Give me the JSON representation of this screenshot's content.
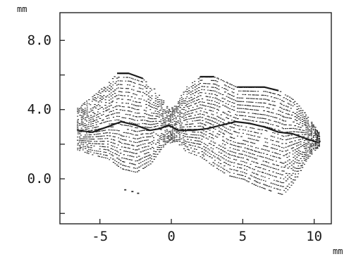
{
  "chart_data": {
    "type": "scatter",
    "title": "",
    "xlabel": "mm",
    "ylabel": "mm",
    "xlim": [
      -7.8,
      11.2
    ],
    "ylim": [
      -2.6,
      9.6
    ],
    "x_ticks": [
      -5,
      0,
      5,
      10
    ],
    "x_tick_labels": [
      "-5",
      "0",
      "5",
      "10"
    ],
    "y_ticks": [
      -2.0,
      0.0,
      2.0,
      4.0,
      6.0,
      8.0
    ],
    "y_tick_labels": [
      "",
      "0.0",
      "",
      "4.0",
      "",
      "8.0"
    ],
    "grid": false,
    "legend": "none",
    "series": [
      {
        "role": "upper-profile",
        "points": [
          [
            -6.6,
            4.1
          ],
          [
            -5.5,
            4.8
          ],
          [
            -4.5,
            5.5
          ],
          [
            -3.8,
            6.1
          ],
          [
            -3.0,
            6.1
          ],
          [
            -2.0,
            5.8
          ],
          [
            -1.0,
            5.0
          ],
          [
            -0.2,
            4.0
          ],
          [
            0.3,
            4.3
          ],
          [
            1.0,
            5.3
          ],
          [
            2.0,
            5.9
          ],
          [
            3.0,
            5.9
          ],
          [
            3.8,
            5.6
          ],
          [
            4.6,
            5.3
          ],
          [
            5.5,
            5.3
          ],
          [
            6.5,
            5.3
          ],
          [
            7.5,
            5.1
          ],
          [
            8.5,
            4.6
          ],
          [
            9.5,
            3.6
          ],
          [
            10.4,
            2.6
          ]
        ]
      },
      {
        "role": "middle-ridge",
        "points": [
          [
            -6.6,
            2.8
          ],
          [
            -5.5,
            2.7
          ],
          [
            -4.5,
            3.0
          ],
          [
            -3.5,
            3.3
          ],
          [
            -2.5,
            3.1
          ],
          [
            -1.5,
            2.8
          ],
          [
            -0.8,
            2.9
          ],
          [
            -0.2,
            3.1
          ],
          [
            0.5,
            2.8
          ],
          [
            1.5,
            2.8
          ],
          [
            2.5,
            2.9
          ],
          [
            3.5,
            3.1
          ],
          [
            4.5,
            3.3
          ],
          [
            5.5,
            3.2
          ],
          [
            6.5,
            3.0
          ],
          [
            7.5,
            2.7
          ],
          [
            8.5,
            2.6
          ],
          [
            9.5,
            2.3
          ],
          [
            10.3,
            2.1
          ]
        ]
      },
      {
        "role": "lower-profile",
        "points": [
          [
            -6.6,
            1.7
          ],
          [
            -5.5,
            1.4
          ],
          [
            -4.5,
            1.2
          ],
          [
            -3.5,
            0.6
          ],
          [
            -2.5,
            0.4
          ],
          [
            -1.5,
            0.9
          ],
          [
            -0.5,
            2.0
          ],
          [
            0.3,
            2.2
          ],
          [
            1.0,
            1.6
          ],
          [
            2.0,
            1.3
          ],
          [
            3.0,
            0.7
          ],
          [
            4.0,
            0.2
          ],
          [
            5.0,
            0.0
          ],
          [
            6.0,
            -0.4
          ],
          [
            7.0,
            -0.7
          ],
          [
            7.8,
            -0.9
          ],
          [
            8.5,
            -0.2
          ],
          [
            9.5,
            1.2
          ],
          [
            10.3,
            1.9
          ]
        ]
      },
      {
        "role": "isolated-fragment",
        "points": [
          [
            -3.3,
            -0.6
          ],
          [
            -2.8,
            -0.7
          ],
          [
            -2.4,
            -0.8
          ]
        ]
      }
    ]
  }
}
